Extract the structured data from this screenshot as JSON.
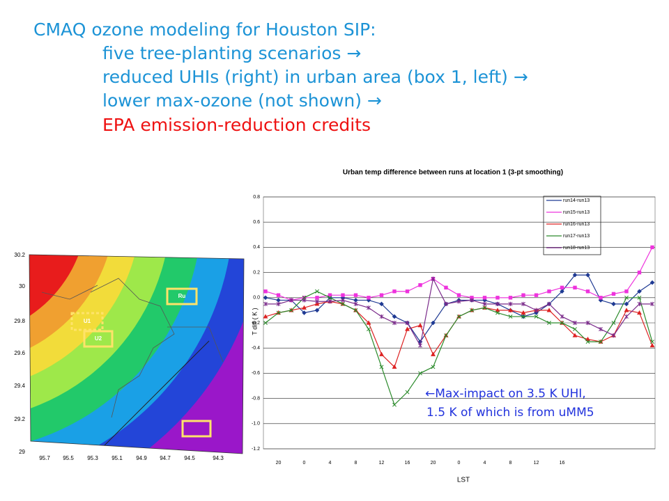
{
  "slide": {
    "lines": [
      {
        "text": "CMAQ ozone modeling for Houston SIP:",
        "color": "#1c93d6"
      },
      {
        "text": "five tree-planting scenarios →",
        "color": "#1c93d6"
      },
      {
        "text": "reduced UHIs (right) in urban area (box 1, left) →",
        "color": "#1c93d6"
      },
      {
        "text": "lower max-ozone (not shown) →",
        "color": "#1c93d6"
      },
      {
        "text": "EPA emission-reduction credits",
        "color": "#ee1111"
      }
    ]
  },
  "map": {
    "yticks": [
      "30.2",
      "30",
      "29.8",
      "29.6",
      "29.4",
      "29.2",
      "29"
    ],
    "xticks": [
      "95.7",
      "95.5",
      "95.3",
      "95.1",
      "94.9",
      "94.7",
      "94.5",
      "94.3"
    ],
    "boxes": [
      "U1",
      "U2",
      "Ru"
    ]
  },
  "chart_data": {
    "type": "line",
    "title": "Urban temp difference between runs at location 1 (3-pt smoothing)",
    "y_label": "T diff ( K )",
    "x_label": "LST",
    "categories": [
      null,
      "20",
      null,
      "0",
      null,
      "4",
      null,
      "8",
      null,
      "12",
      null,
      "16",
      null,
      "20",
      null,
      "0",
      null,
      "4",
      null,
      "8",
      null,
      "12",
      null,
      "16",
      null,
      null,
      null,
      null,
      null,
      null,
      null
    ],
    "ylim": [
      -1.2,
      0.8
    ],
    "yticks": [
      0.8,
      0.6,
      0.4,
      0.2,
      {
        "value": 0,
        "label": "0.0"
      },
      -0.2,
      -0.4,
      -0.6,
      -0.8,
      {
        "value": -1,
        "label": "-1.0"
      },
      -1.2
    ],
    "grid": true,
    "legend": "upper right",
    "series": [
      {
        "name": "run14-run13",
        "color": "#1f3a93",
        "marker": "diamond",
        "values": [
          0.0,
          -0.02,
          -0.02,
          -0.12,
          -0.1,
          0.0,
          0.0,
          -0.02,
          -0.02,
          -0.05,
          -0.15,
          -0.2,
          -0.35,
          -0.2,
          -0.05,
          -0.02,
          -0.02,
          -0.02,
          -0.05,
          -0.1,
          -0.15,
          -0.12,
          -0.05,
          0.05,
          0.18,
          0.18,
          -0.02,
          -0.05,
          -0.05,
          0.05,
          0.12
        ]
      },
      {
        "name": "run15-run13",
        "color": "#ee33dd",
        "marker": "square",
        "values": [
          0.05,
          0.02,
          -0.02,
          0.0,
          0.0,
          0.02,
          0.02,
          0.02,
          0.0,
          0.02,
          0.05,
          0.05,
          0.1,
          0.15,
          0.08,
          0.02,
          0.0,
          0.0,
          0.0,
          0.0,
          0.02,
          0.02,
          0.05,
          0.08,
          0.08,
          0.05,
          0.0,
          0.03,
          0.05,
          0.2,
          0.4
        ]
      },
      {
        "name": "run16-run13",
        "color": "#dd2222",
        "marker": "triangle",
        "values": [
          -0.15,
          -0.12,
          -0.1,
          -0.08,
          -0.05,
          -0.03,
          -0.05,
          -0.1,
          -0.2,
          -0.45,
          -0.55,
          -0.25,
          -0.22,
          -0.45,
          -0.3,
          -0.15,
          -0.1,
          -0.08,
          -0.1,
          -0.1,
          -0.12,
          -0.1,
          -0.1,
          -0.2,
          -0.3,
          -0.33,
          -0.35,
          -0.3,
          -0.1,
          -0.12,
          -0.38
        ]
      },
      {
        "name": "run17-run13",
        "color": "#2a8a2a",
        "marker": "x",
        "values": [
          -0.2,
          -0.12,
          -0.1,
          0.0,
          0.05,
          0.0,
          -0.05,
          -0.1,
          -0.25,
          -0.55,
          -0.85,
          -0.75,
          -0.6,
          -0.55,
          -0.3,
          -0.15,
          -0.1,
          -0.08,
          -0.12,
          -0.15,
          -0.15,
          -0.15,
          -0.2,
          -0.2,
          -0.25,
          -0.35,
          -0.35,
          -0.2,
          0.0,
          0.0,
          -0.35
        ]
      },
      {
        "name": "run18-run13",
        "color": "#7a2a8a",
        "marker": "star",
        "values": [
          -0.05,
          -0.05,
          -0.02,
          -0.02,
          -0.03,
          -0.03,
          -0.02,
          -0.05,
          -0.08,
          -0.15,
          -0.2,
          -0.2,
          -0.38,
          0.15,
          -0.05,
          -0.03,
          -0.02,
          -0.05,
          -0.05,
          -0.05,
          -0.05,
          -0.1,
          -0.05,
          -0.15,
          -0.2,
          -0.2,
          -0.25,
          -0.3,
          -0.15,
          -0.05,
          -0.05
        ]
      }
    ],
    "annotations": [
      "←Max-impact on 3.5 K UHI,",
      "1.5 K of which is from uMM5"
    ]
  }
}
